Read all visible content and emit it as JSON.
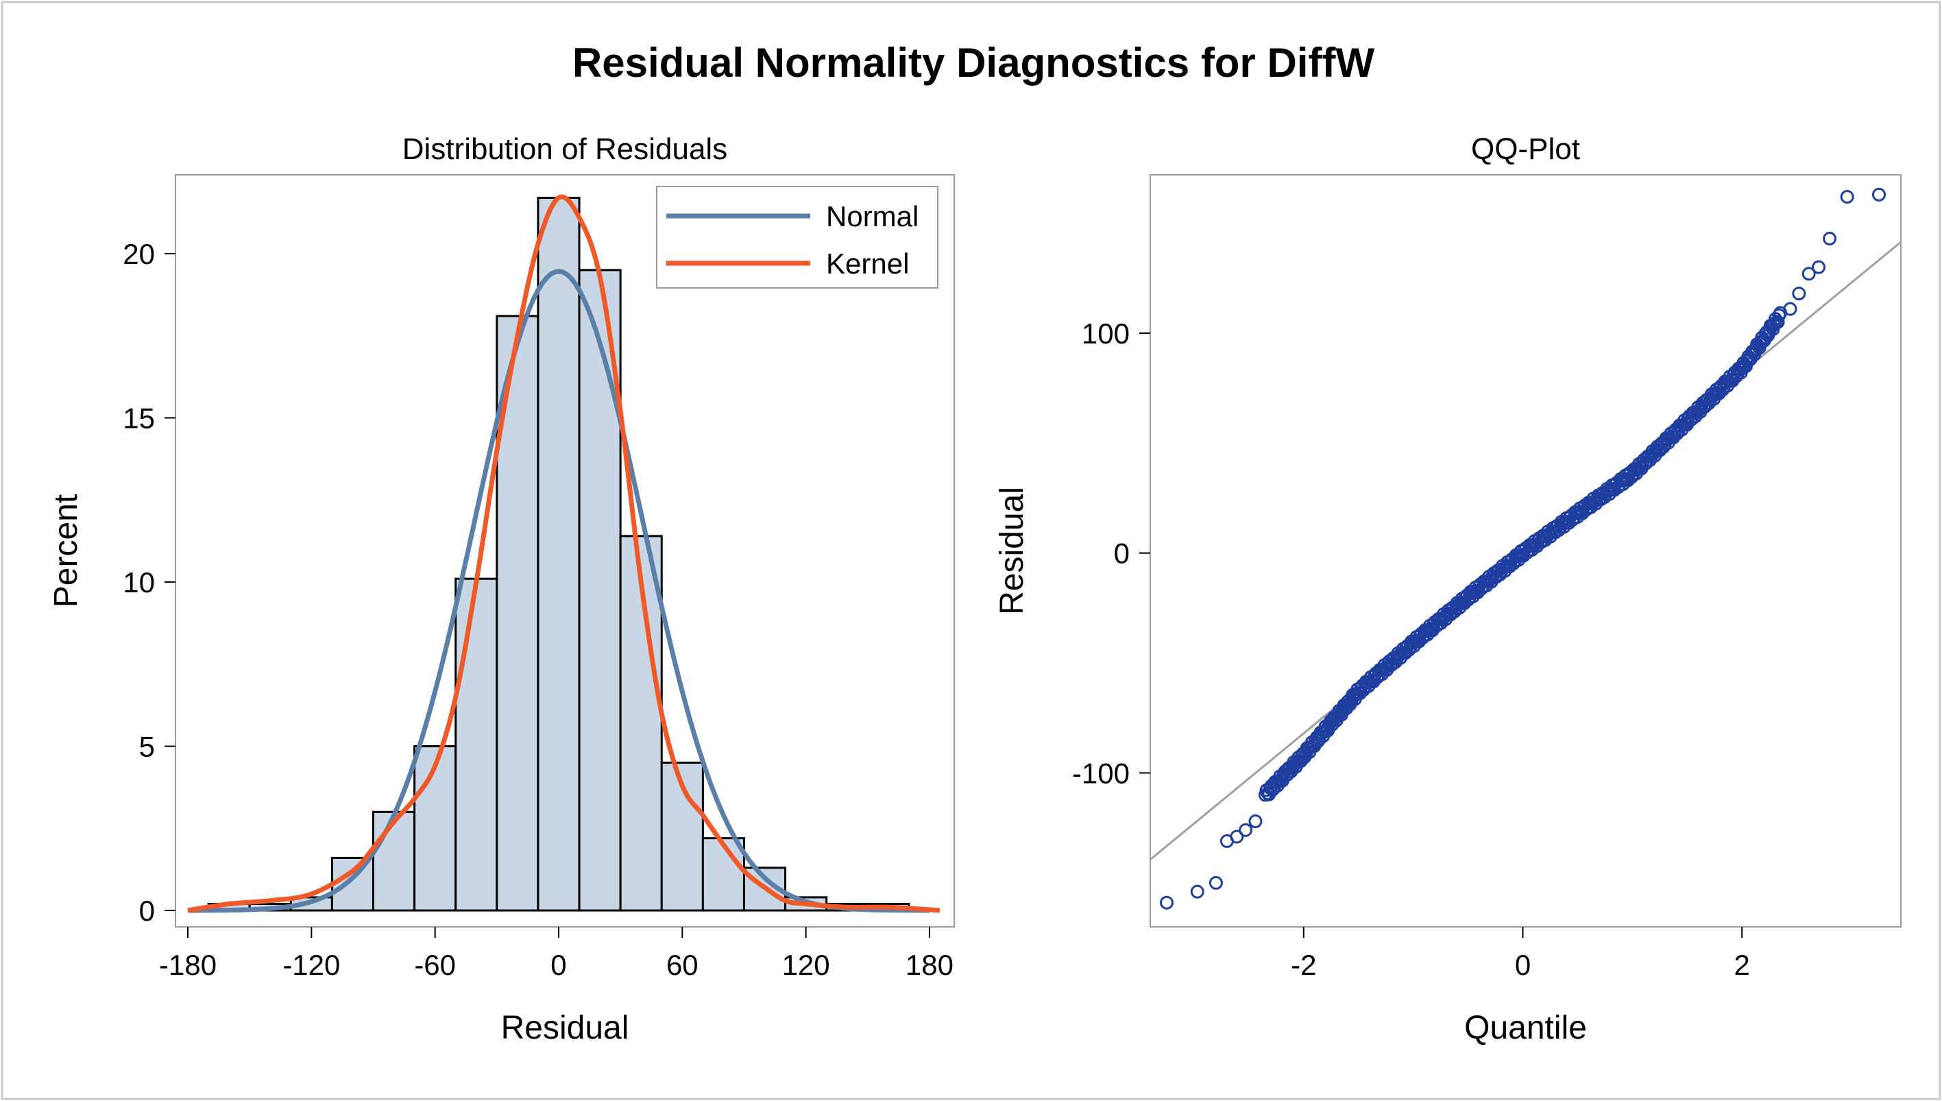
{
  "figure": {
    "title": "Residual Normality Diagnostics for DiffW"
  },
  "colors": {
    "bar_fill": "#c8d6e6",
    "bar_stroke": "#000000",
    "normal_line": "#5b7fa6",
    "kernel_line": "#f05a28",
    "qq_point": "#1f3fa0",
    "ref_line": "#a0a0a0",
    "frame": "#9a9a9a"
  },
  "chart_data": [
    {
      "id": "histogram",
      "type": "bar",
      "title": "Distribution of Residuals",
      "xlabel": "Residual",
      "ylabel": "Percent",
      "xlim": [
        -186,
        192
      ],
      "ylim": [
        -0.5,
        22.4
      ],
      "bin_width": 20,
      "bin_centers": [
        -160,
        -140,
        -120,
        -100,
        -80,
        -60,
        -40,
        -20,
        0,
        20,
        40,
        60,
        80,
        100,
        120,
        140,
        160
      ],
      "values": [
        0.2,
        0.2,
        0.4,
        1.6,
        3.0,
        5.0,
        10.1,
        18.1,
        21.7,
        19.5,
        11.4,
        4.5,
        2.2,
        1.3,
        0.4,
        0.2,
        0.2
      ],
      "xticks": [
        -180,
        -120,
        -60,
        0,
        60,
        120,
        180
      ],
      "xtick_labels": [
        "-180",
        "-120",
        "-60",
        "0",
        "60",
        "120",
        "180"
      ],
      "yticks": [
        0,
        5,
        10,
        15,
        20
      ],
      "ytick_labels": [
        "0",
        "5",
        "10",
        "15",
        "20"
      ],
      "legend": {
        "position": "top-right",
        "entries": [
          {
            "label": "Normal",
            "series": "normal"
          },
          {
            "label": "Kernel",
            "series": "kernel"
          }
        ]
      },
      "series": [
        {
          "name": "Normal",
          "key": "normal",
          "mean": 0,
          "sd": 41,
          "x_range": [
            -180,
            180
          ],
          "scale_percent_per_bin": 20
        },
        {
          "name": "Kernel",
          "key": "kernel",
          "x": [
            -180,
            -160,
            -140,
            -120,
            -100,
            -90,
            -80,
            -70,
            -60,
            -50,
            -40,
            -30,
            -20,
            -10,
            0,
            10,
            20,
            30,
            40,
            50,
            60,
            70,
            80,
            90,
            100,
            110,
            120,
            140,
            160,
            185
          ],
          "y": [
            0.0,
            0.2,
            0.3,
            0.5,
            1.2,
            1.9,
            2.7,
            3.4,
            4.4,
            6.5,
            10.0,
            14.0,
            17.5,
            20.3,
            21.7,
            21.1,
            19.3,
            15.2,
            10.0,
            6.0,
            3.8,
            2.9,
            2.0,
            1.2,
            0.7,
            0.3,
            0.2,
            0.1,
            0.1,
            0.0
          ]
        }
      ]
    },
    {
      "id": "qqplot",
      "type": "scatter",
      "title": "QQ-Plot",
      "xlabel": "Quantile",
      "ylabel": "Residual",
      "xlim": [
        -3.4,
        3.45
      ],
      "ylim": [
        -170,
        172
      ],
      "xticks": [
        -2,
        0,
        2
      ],
      "xtick_labels": [
        "-2",
        "0",
        "2"
      ],
      "yticks": [
        -100,
        0,
        100
      ],
      "ytick_labels": [
        "-100",
        "0",
        "100"
      ],
      "reference_line": {
        "intercept": 0,
        "slope": 41
      },
      "sample_size": 420,
      "tail_points": {
        "x": [
          -3.25,
          -2.97,
          -2.8,
          -2.7,
          -2.61,
          -2.53,
          -2.44,
          2.44,
          2.52,
          2.61,
          2.7,
          2.8,
          2.96,
          3.25
        ],
        "y": [
          -159,
          -154,
          -150,
          -131,
          -129,
          -126,
          -122,
          111,
          118,
          127,
          130,
          143,
          162,
          163
        ]
      },
      "body_curve": {
        "q": [
          -2.35,
          -2.0,
          -1.5,
          -1.0,
          -0.5,
          0.0,
          0.5,
          1.0,
          1.5,
          2.0,
          2.35
        ],
        "r": [
          -110,
          -92,
          -63,
          -41,
          -20,
          0,
          18,
          36,
          60,
          84,
          108
        ]
      }
    }
  ]
}
